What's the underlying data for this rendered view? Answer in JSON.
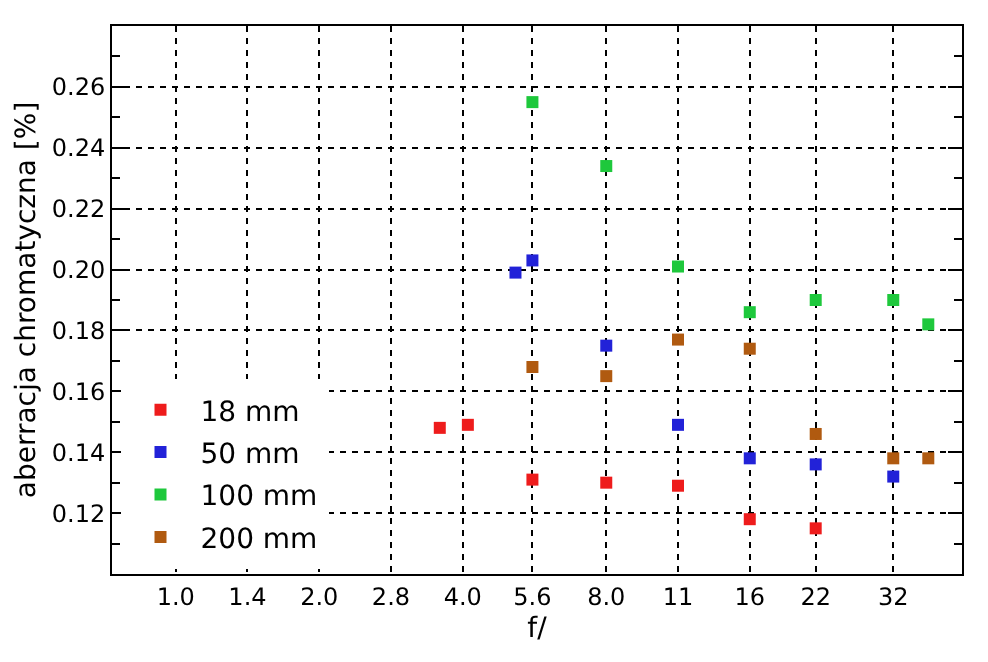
{
  "chart_data": {
    "type": "scatter",
    "xlabel": "f/",
    "ylabel": "aberracja chromatyczna [%]",
    "log": "x",
    "grid": true,
    "legend": "bottom left",
    "marker": "square",
    "xlim": [
      0.735,
      44.6
    ],
    "xticks": [
      {
        "value": 1,
        "label": "1.0"
      },
      {
        "value": 1.414,
        "label": "1.4"
      },
      {
        "value": 2,
        "label": "2.0"
      },
      {
        "value": 2.828,
        "label": "2.8"
      },
      {
        "value": 4,
        "label": "4.0"
      },
      {
        "value": 5.6,
        "label": "5.6"
      },
      {
        "value": 8,
        "label": "8.0"
      },
      {
        "value": 11.314,
        "label": "11"
      },
      {
        "value": 16,
        "label": "16"
      },
      {
        "value": 22,
        "label": "22"
      },
      {
        "value": 32,
        "label": "32"
      }
    ],
    "ylim": [
      0.1,
      0.28
    ],
    "yticks": [
      {
        "value": 0.11,
        "label": null
      },
      {
        "value": 0.12,
        "label": "0.12"
      },
      {
        "value": 0.13,
        "label": null
      },
      {
        "value": 0.14,
        "label": "0.14"
      },
      {
        "value": 0.15,
        "label": null
      },
      {
        "value": 0.16,
        "label": "0.16"
      },
      {
        "value": 0.17,
        "label": null
      },
      {
        "value": 0.18,
        "label": "0.18"
      },
      {
        "value": 0.19,
        "label": null
      },
      {
        "value": 0.2,
        "label": "0.20"
      },
      {
        "value": 0.21,
        "label": null
      },
      {
        "value": 0.22,
        "label": "0.22"
      },
      {
        "value": 0.23,
        "label": null
      },
      {
        "value": 0.24,
        "label": "0.24"
      },
      {
        "value": 0.25,
        "label": null
      },
      {
        "value": 0.26,
        "label": "0.26"
      },
      {
        "value": 0.27,
        "label": null
      }
    ],
    "series": [
      {
        "name": "18 mm",
        "color": "#ee1c1c",
        "x": [
          3.58,
          4.1,
          5.6,
          8,
          11.314,
          16,
          22
        ],
        "values": [
          0.148,
          0.149,
          0.131,
          0.13,
          0.129,
          0.118,
          0.115
        ]
      },
      {
        "name": "50 mm",
        "color": "#2222d8",
        "x": [
          5.16,
          5.6,
          8,
          11.314,
          16,
          22,
          32
        ],
        "values": [
          0.199,
          0.203,
          0.175,
          0.149,
          0.138,
          0.136,
          0.132
        ]
      },
      {
        "name": "100 mm",
        "color": "#1ec83c",
        "x": [
          5.6,
          8,
          11.314,
          16,
          22,
          32,
          37.9
        ],
        "values": [
          0.255,
          0.234,
          0.201,
          0.186,
          0.19,
          0.19,
          0.182
        ]
      },
      {
        "name": "200 mm",
        "color": "#b05a10",
        "x": [
          5.6,
          8,
          11.314,
          16,
          22,
          32,
          37.9
        ],
        "values": [
          0.168,
          0.165,
          0.177,
          0.174,
          0.146,
          0.138,
          0.138
        ]
      }
    ]
  }
}
